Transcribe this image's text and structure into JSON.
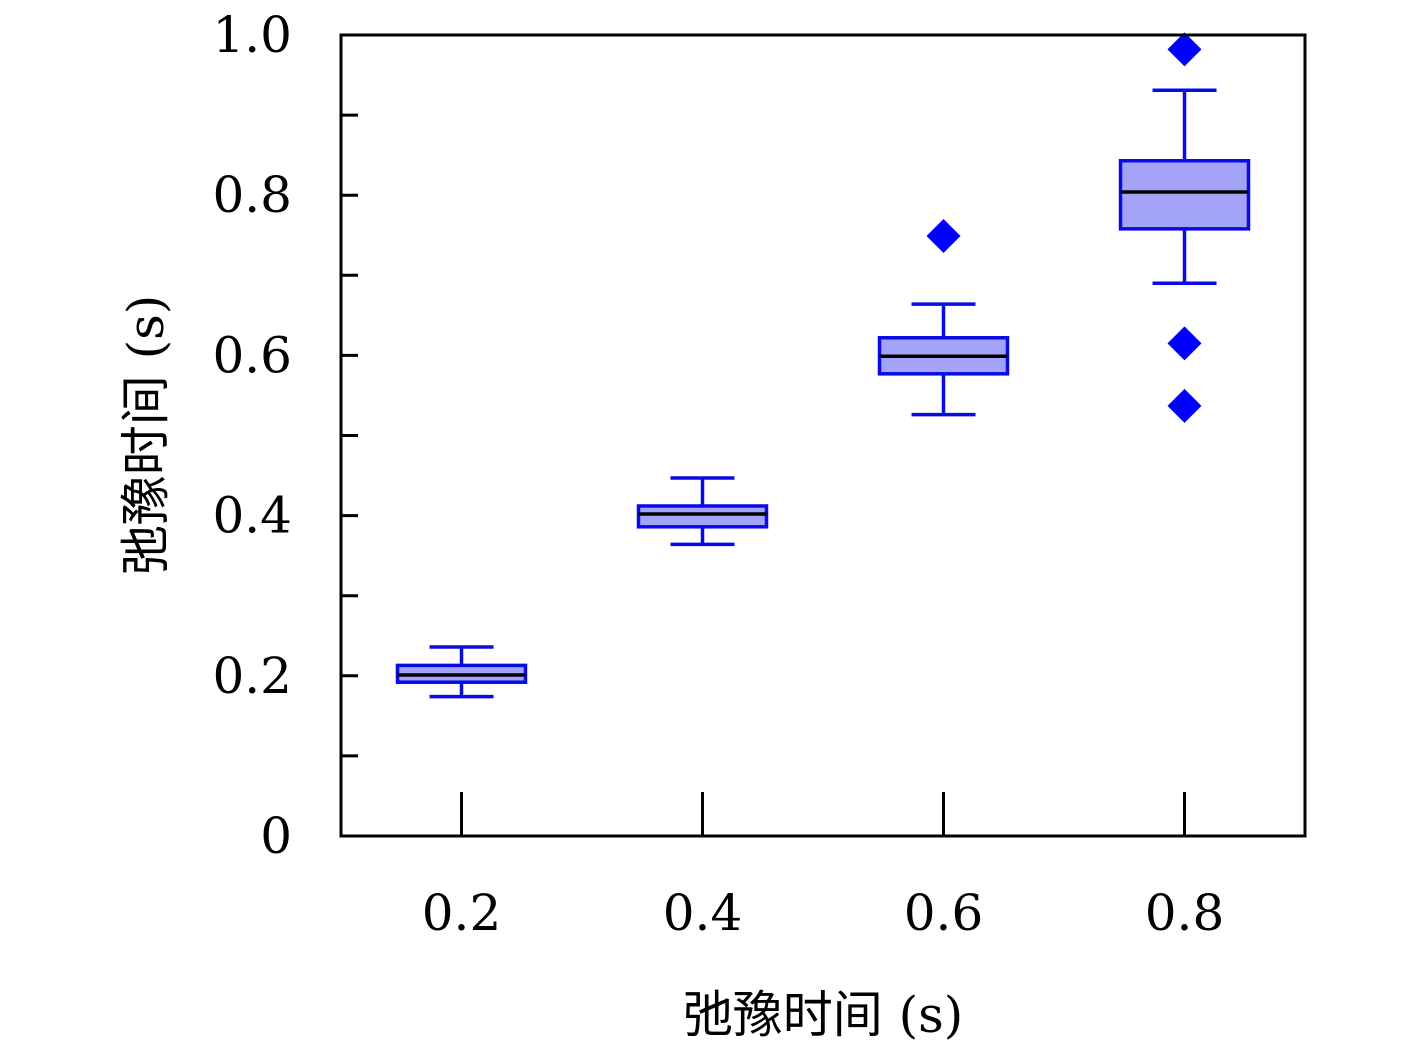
{
  "chart_data": {
    "type": "box",
    "xlabel": "弛豫时间 (s)",
    "ylabel": "弛豫时间 (s)",
    "xlim": [
      0.1,
      0.9
    ],
    "ylim": [
      0,
      1.0
    ],
    "x_ticks": [
      0.2,
      0.4,
      0.6,
      0.8
    ],
    "x_tick_labels": [
      "0.2",
      "0.4",
      "0.6",
      "0.8"
    ],
    "y_ticks": [
      0,
      0.2,
      0.4,
      0.6,
      0.8,
      1.0
    ],
    "y_tick_labels": [
      "0",
      "0.2",
      "0.4",
      "0.6",
      "0.8",
      "1.0"
    ],
    "y_minor_ticks": [
      0.1,
      0.3,
      0.5,
      0.7,
      0.9
    ],
    "grid": false,
    "colors": {
      "box_fill": "#a3a3f7",
      "box_edge": "#0a0ae6",
      "whisker": "#0a0ae6",
      "median": "#000000",
      "outlier": "#0000ff"
    },
    "boxes": [
      {
        "x": 0.2,
        "whisker_low": 0.174,
        "q1": 0.192,
        "median": 0.201,
        "q3": 0.213,
        "whisker_high": 0.236,
        "outliers": []
      },
      {
        "x": 0.4,
        "whisker_low": 0.364,
        "q1": 0.386,
        "median": 0.402,
        "q3": 0.412,
        "whisker_high": 0.447,
        "outliers": []
      },
      {
        "x": 0.6,
        "whisker_low": 0.526,
        "q1": 0.577,
        "median": 0.599,
        "q3": 0.622,
        "whisker_high": 0.664,
        "outliers": [
          0.749
        ]
      },
      {
        "x": 0.8,
        "whisker_low": 0.69,
        "q1": 0.758,
        "median": 0.804,
        "q3": 0.843,
        "whisker_high": 0.931,
        "outliers": [
          0.982,
          0.615,
          0.537
        ]
      }
    ]
  }
}
